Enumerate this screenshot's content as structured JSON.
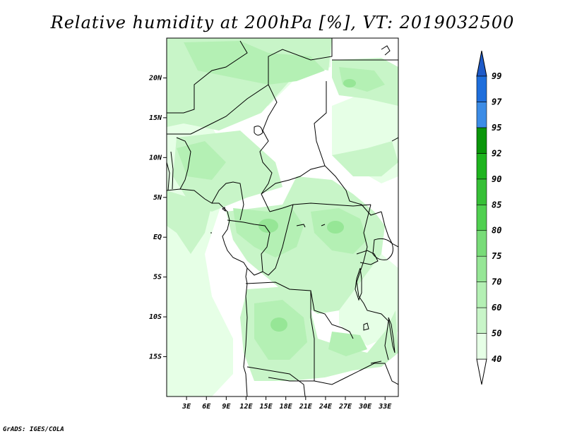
{
  "title": "Relative humidity at 200hPa [%], VT: 2019032500",
  "footer": "GrADS: IGES/COLA",
  "map": {
    "lon_range": [
      0,
      35
    ],
    "lat_range": [
      -20,
      25
    ],
    "lat_ticks": [
      {
        "value": 20,
        "label": "20N"
      },
      {
        "value": 15,
        "label": "15N"
      },
      {
        "value": 10,
        "label": "10N"
      },
      {
        "value": 5,
        "label": "5N"
      },
      {
        "value": 0,
        "label": "EQ"
      },
      {
        "value": -5,
        "label": "5S"
      },
      {
        "value": -10,
        "label": "10S"
      },
      {
        "value": -15,
        "label": "15S"
      }
    ],
    "lon_ticks": [
      {
        "value": 3,
        "label": "3E"
      },
      {
        "value": 6,
        "label": "6E"
      },
      {
        "value": 9,
        "label": "9E"
      },
      {
        "value": 12,
        "label": "12E"
      },
      {
        "value": 15,
        "label": "15E"
      },
      {
        "value": 18,
        "label": "18E"
      },
      {
        "value": 21,
        "label": "21E"
      },
      {
        "value": 24,
        "label": "24E"
      },
      {
        "value": 27,
        "label": "27E"
      },
      {
        "value": 30,
        "label": "30E"
      },
      {
        "value": 33,
        "label": "33E"
      }
    ]
  },
  "colorbar": {
    "levels": [
      {
        "value": "40",
        "color": "#e6ffe6"
      },
      {
        "value": "50",
        "color": "#c8f5c8"
      },
      {
        "value": "60",
        "color": "#b4f0b4"
      },
      {
        "value": "70",
        "color": "#96e696"
      },
      {
        "value": "75",
        "color": "#78dc78"
      },
      {
        "value": "80",
        "color": "#50d050"
      },
      {
        "value": "85",
        "color": "#37c037"
      },
      {
        "value": "90",
        "color": "#1eb41e"
      },
      {
        "value": "92",
        "color": "#0a960a"
      },
      {
        "value": "95",
        "color": "#3c8ce6"
      },
      {
        "value": "97",
        "color": "#1e6edc"
      }
    ],
    "top_label": "99",
    "top_color": "#1e5ac8",
    "bottom_color": "#ffffff"
  }
}
